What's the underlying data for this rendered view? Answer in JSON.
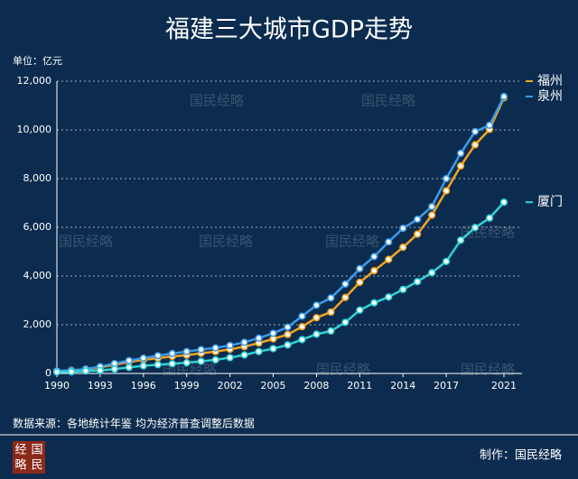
{
  "chart_data": {
    "type": "line",
    "title": "福建三大城市GDP走势",
    "unit_label": "单位：亿元",
    "source": "数据来源：各地统计年鉴  均为经济普查调整后数据",
    "credit": "制作：国民经略",
    "watermark": "国民经略",
    "logo": [
      "经",
      "国",
      "略",
      "民"
    ],
    "x": [
      1990,
      1991,
      1992,
      1993,
      1994,
      1995,
      1996,
      1997,
      1998,
      1999,
      2000,
      2001,
      2002,
      2003,
      2004,
      2005,
      2006,
      2007,
      2008,
      2009,
      2010,
      2011,
      2012,
      2013,
      2014,
      2015,
      2016,
      2017,
      2018,
      2019,
      2020,
      2021
    ],
    "xlim": [
      1990,
      2021
    ],
    "xticks": [
      1990,
      1993,
      1996,
      1999,
      2002,
      2005,
      2008,
      2011,
      2014,
      2017,
      2021
    ],
    "ylim": [
      0,
      12000
    ],
    "yticks": [
      0,
      {
        "value": 2000,
        "label": "2,000"
      },
      {
        "value": 4000,
        "label": "4,000"
      },
      {
        "value": 6000,
        "label": "6,000"
      },
      {
        "value": 8000,
        "label": "8,000"
      },
      {
        "value": 10000,
        "label": "10,000"
      },
      {
        "value": 12000,
        "label": "12,000"
      }
    ],
    "grid": true,
    "series": [
      {
        "name": "福州",
        "color": "#f5a31f",
        "values": [
          90,
          130,
          170,
          250,
          360,
          470,
          560,
          630,
          700,
          750,
          830,
          900,
          990,
          1100,
          1250,
          1420,
          1600,
          1920,
          2290,
          2520,
          3120,
          3740,
          4220,
          4680,
          5180,
          5720,
          6500,
          7500,
          8520,
          9390,
          10020,
          11320
        ]
      },
      {
        "name": "泉州",
        "color": "#3d9be9",
        "values": [
          100,
          120,
          180,
          280,
          410,
          530,
          630,
          730,
          820,
          900,
          980,
          1050,
          1150,
          1280,
          1450,
          1650,
          1900,
          2350,
          2800,
          3100,
          3670,
          4300,
          4800,
          5400,
          5960,
          6330,
          6850,
          8000,
          9040,
          9930,
          10190,
          11370
        ]
      },
      {
        "name": "厦门",
        "color": "#2fd3d6",
        "values": [
          60,
          70,
          100,
          120,
          180,
          250,
          310,
          360,
          400,
          440,
          500,
          560,
          650,
          760,
          900,
          1020,
          1170,
          1390,
          1610,
          1740,
          2100,
          2600,
          2900,
          3140,
          3450,
          3770,
          4140,
          4600,
          5470,
          5990,
          6380,
          7030
        ]
      }
    ]
  }
}
